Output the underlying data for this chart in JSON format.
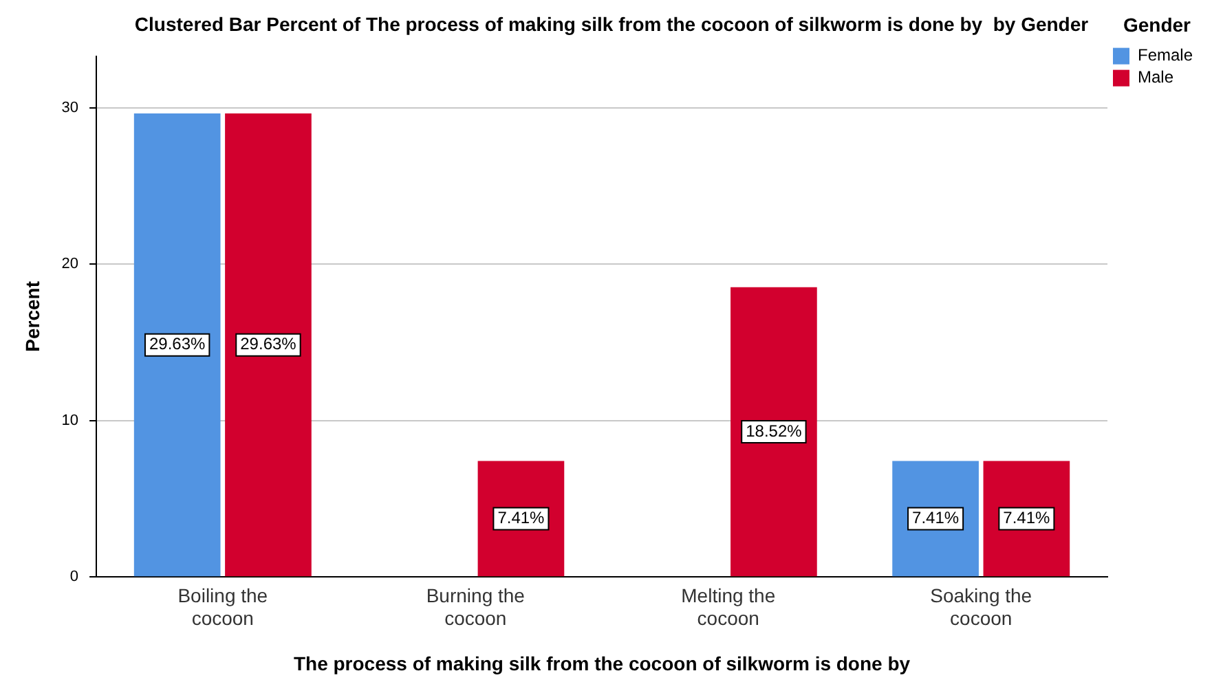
{
  "chart_data": {
    "type": "bar",
    "title": "Clustered Bar Percent of The process of making silk from the cocoon of silkworm is done by  by Gender",
    "xlabel": "The process of making silk from the cocoon of silkworm is done by",
    "ylabel": "Percent",
    "legend_title": "Gender",
    "categories": [
      "Boiling the cocoon",
      "Burning the cocoon",
      "Melting the cocoon",
      "Soaking the cocoon"
    ],
    "series": [
      {
        "name": "Female",
        "color": "#5294e2",
        "values": [
          29.63,
          null,
          null,
          7.41
        ],
        "value_labels": [
          "29.63%",
          null,
          null,
          "7.41%"
        ]
      },
      {
        "name": "Male",
        "color": "#d2002e",
        "values": [
          29.63,
          7.41,
          18.52,
          7.41
        ],
        "value_labels": [
          "29.63%",
          "7.41%",
          "18.52%",
          "7.41%"
        ]
      }
    ],
    "ylim": [
      0,
      33.3
    ],
    "yticks": [
      0,
      10,
      20,
      30
    ],
    "grid": "y",
    "legend": "top right"
  }
}
